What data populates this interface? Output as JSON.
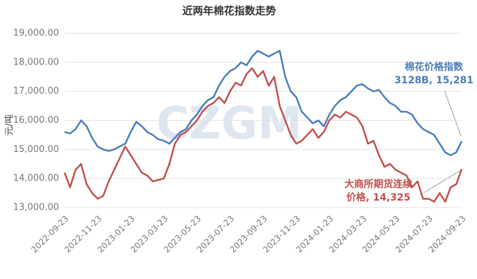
{
  "chart_data": {
    "type": "line",
    "title": "近两年棉花指数走势",
    "y_label": "元/吨",
    "watermark": "CZGM",
    "categories": [
      "2022-09-23",
      null,
      null,
      null,
      null,
      null,
      "2022-11-23",
      null,
      null,
      null,
      null,
      null,
      "2023-01-23",
      null,
      null,
      null,
      null,
      null,
      "2023-03-23",
      null,
      null,
      null,
      null,
      null,
      "2023-05-23",
      null,
      null,
      null,
      null,
      null,
      "2023-07-23",
      null,
      null,
      null,
      null,
      null,
      "2023-09-23",
      null,
      null,
      null,
      null,
      null,
      "2023-11-23",
      null,
      null,
      null,
      null,
      null,
      "2024-01-23",
      null,
      null,
      null,
      null,
      null,
      "2024-03-23",
      null,
      null,
      null,
      null,
      null,
      "2024-05-23",
      null,
      null,
      null,
      null,
      null,
      "2024-07-23",
      null,
      null,
      null,
      null,
      null,
      "2024-09-23"
    ],
    "series": [
      {
        "name": "棉花价格指数3128B",
        "color": "#4a7ebb",
        "values": [
          15600,
          15550,
          15700,
          16000,
          15800,
          15400,
          15100,
          15000,
          14950,
          15000,
          15100,
          15200,
          15600,
          15950,
          15800,
          15600,
          15500,
          15350,
          15300,
          15200,
          15400,
          15600,
          15700,
          16000,
          16200,
          16500,
          16700,
          16800,
          17200,
          17500,
          17700,
          17800,
          18000,
          17900,
          18200,
          18400,
          18300,
          18200,
          18300,
          18400,
          17500,
          17000,
          16800,
          16300,
          16100,
          15900,
          16000,
          15800,
          16200,
          16500,
          16700,
          16800,
          17000,
          17200,
          17250,
          17100,
          17000,
          17050,
          16800,
          16600,
          16500,
          16300,
          16300,
          16200,
          15900,
          15700,
          15600,
          15500,
          15200,
          14900,
          14800,
          14900,
          15281
        ]
      },
      {
        "name": "大商所期货连续价格",
        "color": "#c0504d",
        "values": [
          14200,
          13700,
          14300,
          14500,
          13800,
          13500,
          13300,
          13400,
          13900,
          14300,
          14700,
          15100,
          14800,
          14500,
          14200,
          14100,
          13900,
          13950,
          14000,
          14500,
          15200,
          15500,
          15600,
          15800,
          16000,
          16300,
          16500,
          16600,
          16800,
          16600,
          17000,
          17300,
          17200,
          17600,
          17800,
          17500,
          17700,
          17200,
          17500,
          16500,
          16000,
          15500,
          15200,
          15300,
          15500,
          15700,
          15400,
          15600,
          16000,
          16200,
          16100,
          16300,
          16200,
          16100,
          15800,
          15200,
          15300,
          14800,
          14400,
          14500,
          14300,
          14200,
          14100,
          13700,
          13900,
          13300,
          13300,
          13200,
          13500,
          13200,
          13700,
          13800,
          14325
        ]
      }
    ],
    "ylim": [
      13000,
      19000
    ],
    "yticks": [
      {
        "value": 13000,
        "label": "13,000.00"
      },
      {
        "value": 14000,
        "label": "14,000.00"
      },
      {
        "value": 15000,
        "label": "15,000.00"
      },
      {
        "value": 16000,
        "label": "16,000.00"
      },
      {
        "value": 17000,
        "label": "17,000.00"
      },
      {
        "value": 18000,
        "label": "18,000.00"
      },
      {
        "value": 19000,
        "label": "19,000.00"
      }
    ],
    "grid": true,
    "annotations": [
      {
        "lines": [
          "棉花价格指数",
          "3128B, 15,281"
        ],
        "color": "#4a7ebb"
      },
      {
        "lines": [
          "大商所期货连续",
          "价格, 14,325"
        ],
        "color": "#c0504d"
      }
    ]
  }
}
